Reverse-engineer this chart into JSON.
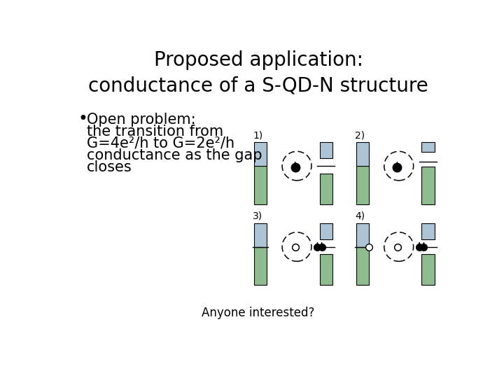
{
  "title_line1": "Proposed application:",
  "title_line2": "conductance of a S-QD-N structure",
  "title_fontsize": 20,
  "bullet_lines": [
    "Open problem:",
    "the transition from",
    "G=4e²/h to G=2e²/h",
    "conductance as the gap",
    "closes"
  ],
  "bullet_fontsize": 15,
  "footer_text": "Anyone interested?",
  "footer_fontsize": 12,
  "bg_color": "#ffffff",
  "text_color": "#000000",
  "green_color": "#8fbc8f",
  "blue_color": "#adc4d6",
  "panels": [
    {
      "label": "1)",
      "col": 0,
      "row": 0,
      "qd_type": "filled_dot",
      "fermi_level": 0,
      "has_two_dots": false,
      "has_arrow": false
    },
    {
      "label": "2)",
      "col": 1,
      "row": 0,
      "qd_type": "filled_dot",
      "fermi_level": 1,
      "has_two_dots": false,
      "has_arrow": false
    },
    {
      "label": "3)",
      "col": 0,
      "row": 1,
      "qd_type": "open_circle",
      "fermi_level": 0,
      "has_two_dots": true,
      "has_arrow": false
    },
    {
      "label": "4)",
      "col": 1,
      "row": 1,
      "qd_type": "open_circle",
      "fermi_level": 0,
      "has_two_dots": true,
      "has_arrow": true
    }
  ]
}
